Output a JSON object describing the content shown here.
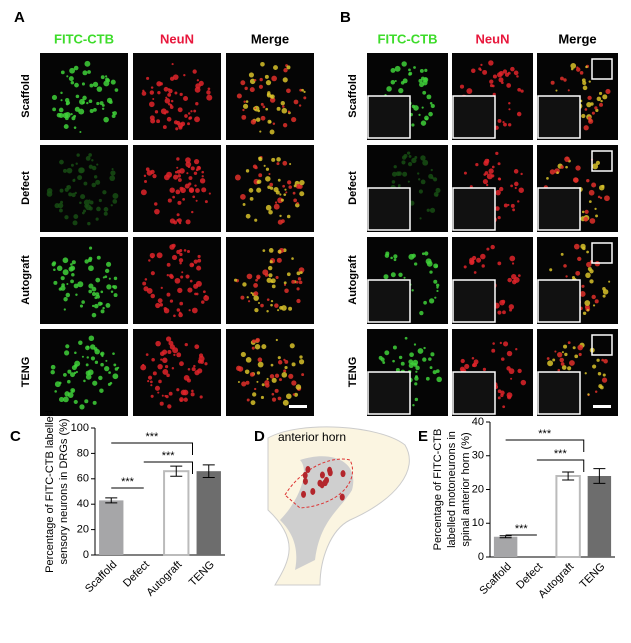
{
  "panel_labels": [
    "A",
    "B",
    "C",
    "D",
    "E"
  ],
  "micrographs": [
    {
      "channels": [
        "FITC-CTB",
        "NeuN",
        "Merge"
      ],
      "rows": [
        "Scaffold",
        "Defect",
        "Autograft",
        "TENG"
      ]
    },
    {
      "channels": [
        "FITC-CTB",
        "NeuN",
        "Merge"
      ],
      "rows": [
        "Scaffold",
        "Defect",
        "Autograft",
        "TENG"
      ]
    }
  ],
  "diagram": {
    "label": "anterior horn"
  },
  "chart_data": [
    {
      "type": "bar",
      "ylabel": [
        "Percentage of FITC-CTB labelled",
        "sensory neurons in DRGs (%)"
      ],
      "categories": [
        "Scaffold",
        "Defect",
        "Autograft",
        "TENG"
      ],
      "values": [
        43,
        0,
        66,
        66
      ],
      "errors": [
        2,
        0,
        4,
        5
      ],
      "colors": [
        "#a6a6a8",
        "#6a6a6a",
        "#ffffff",
        "#6d6d6d"
      ],
      "ylim": [
        0,
        100
      ],
      "yticks": [
        0,
        20,
        40,
        60,
        80,
        100
      ],
      "annotations": [
        "***",
        "***",
        "***"
      ]
    },
    {
      "type": "bar",
      "ylabel": [
        "Percentage of FITC-CTB",
        "labelled motoneurons in",
        "spinal anterior horn (%)"
      ],
      "categories": [
        "Scaffold",
        "Defect",
        "Autograft",
        "TENG"
      ],
      "values": [
        6,
        0,
        24,
        24
      ],
      "errors": [
        0.3,
        0,
        1.2,
        2.2
      ],
      "colors": [
        "#a6a6a8",
        "#6a6a6a",
        "#ffffff",
        "#6d6d6d"
      ],
      "ylim": [
        0,
        40
      ],
      "yticks": [
        0,
        10,
        20,
        30,
        40
      ],
      "annotations": [
        "***",
        "***",
        "***"
      ]
    }
  ]
}
